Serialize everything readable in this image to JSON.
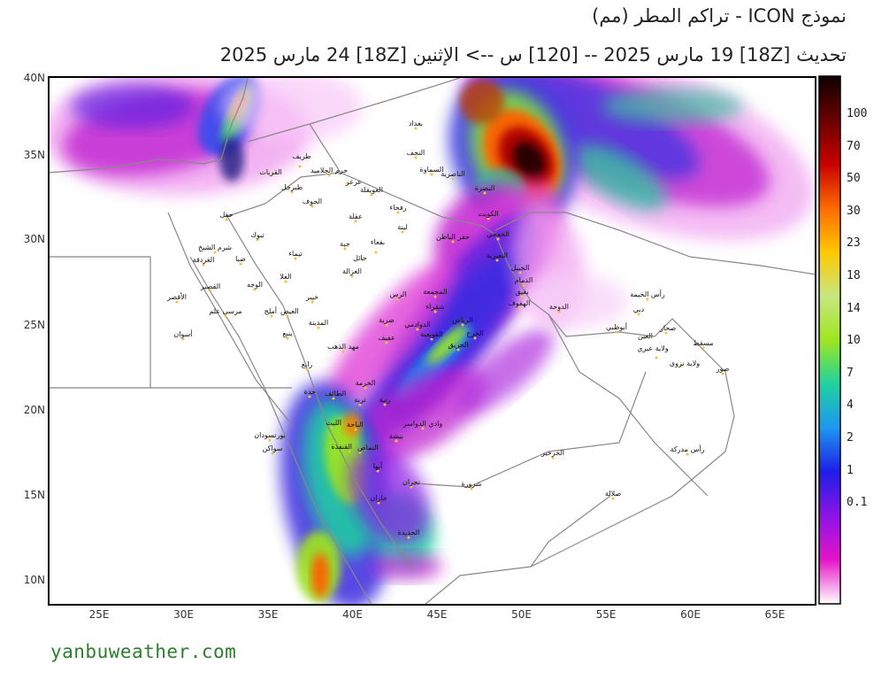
{
  "header": {
    "title": "نموذج ICON  - تراكم المطر (مم)",
    "subtitle": "تحديث [18Z] 19 مارس 2025 -- [120] س --> الإثنين [18Z] 24 مارس 2025"
  },
  "map": {
    "lat_ticks": [
      "40N",
      "35N",
      "30N",
      "25N",
      "20N",
      "15N",
      "10N"
    ],
    "lon_ticks": [
      "25E",
      "30E",
      "35E",
      "40E",
      "45E",
      "50E",
      "55E",
      "60E",
      "65E"
    ],
    "cities": [
      "بغداد",
      "النجف",
      "السماوة",
      "الناصرية",
      "البصرة",
      "الكويت",
      "حفر الباطن",
      "الخفجي",
      "النعيرية",
      "الجبيل",
      "الدمام",
      "بقيق",
      "الهفوف",
      "الدوحة",
      "طريف",
      "القريات",
      "حرم الجلاميد",
      "عرعر",
      "طبرجل",
      "الجوف",
      "العويقلة",
      "رفحاء",
      "عقلة",
      "لينة",
      "حقل",
      "تبوك",
      "شرم الشيخ",
      "الغردقة",
      "ضبا",
      "تيماء",
      "جبة",
      "بقعاء",
      "حائل",
      "الغزالة",
      "العلا",
      "الوجه",
      "القصير",
      "الأقصر",
      "خيبر",
      "مرسى علم",
      "العيص",
      "أملج",
      "المدينة",
      "أسوان",
      "ينبع",
      "الرس",
      "المجمعة",
      "شقراء",
      "ضرية",
      "الدوادمي",
      "الرياض",
      "القويعية",
      "عفيف",
      "الخرج",
      "الحريق",
      "مهد الذهب",
      "رابغ",
      "جدة",
      "الطائف",
      "الخرمة",
      "تربة",
      "رنية",
      "الليث",
      "الباحة",
      "وادي الدواسر",
      "بورتسودان",
      "سواكن",
      "بيشة",
      "القنفذة",
      "النماص",
      "أبها",
      "نجران",
      "شرورة",
      "جازان",
      "الحديدة",
      "رأس الخيمة",
      "دبي",
      "أبوظبي",
      "صحار",
      "العين",
      "مسقط",
      "ولاية عبري",
      "ولاية نزوى",
      "صور",
      "الخرخير",
      "رأس مدركة",
      "صلالة"
    ]
  },
  "colorbar": {
    "unit": "mm",
    "levels": [
      "100",
      "70",
      "50",
      "30",
      "23",
      "18",
      "14",
      "10",
      "7",
      "4",
      "2",
      "1",
      "0.1"
    ],
    "colors": [
      "#100000",
      "#6a0000",
      "#c80000",
      "#ff6a00",
      "#ffc800",
      "#c8e680",
      "#a0e61e",
      "#1ed2a0",
      "#1e96f0",
      "#1e1ee6",
      "#8c14e6",
      "#e614c8",
      "#ffffff"
    ]
  },
  "footer": {
    "brand": "yanbuweather.com"
  }
}
